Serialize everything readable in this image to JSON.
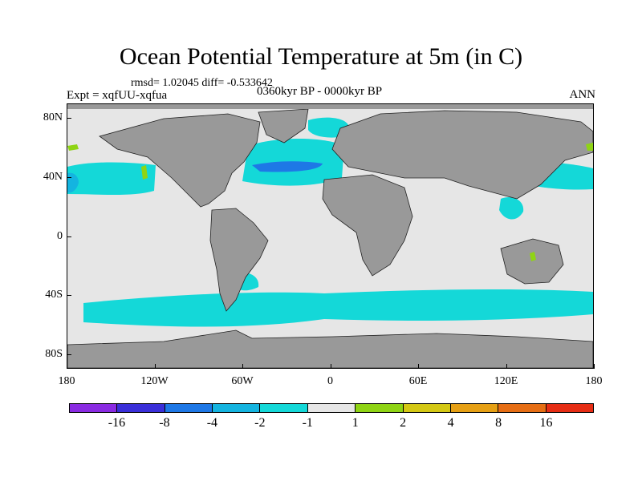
{
  "figure": {
    "title": "Ocean Potential Temperature at 5m (in C)",
    "stats_line": "rmsd= 1.02045 diff= -0.533642",
    "experiment": "Expt = xqfUU-xqfua",
    "period": "0360kyr BP - 0000kyr BP",
    "season": "ANN"
  },
  "map": {
    "projection": "cylindrical equidistant",
    "lon_range": [
      -180,
      180
    ],
    "lat_range": [
      -90,
      90
    ],
    "land_color": "#999999",
    "no_change_color": "#e6e6e6",
    "lat_ticks": [
      {
        "label": "80N",
        "lat": 80
      },
      {
        "label": "40N",
        "lat": 40
      },
      {
        "label": "0",
        "lat": 0
      },
      {
        "label": "40S",
        "lat": -40
      },
      {
        "label": "80S",
        "lat": -80
      }
    ],
    "lon_ticks": [
      {
        "label": "180",
        "lon": -180
      },
      {
        "label": "120W",
        "lon": -120
      },
      {
        "label": "60W",
        "lon": -60
      },
      {
        "label": "0",
        "lon": 0
      },
      {
        "label": "60E",
        "lon": 60
      },
      {
        "label": "120E",
        "lon": 120
      },
      {
        "label": "180",
        "lon": 180
      }
    ]
  },
  "colorbar": {
    "colors": [
      "#8a2be2",
      "#3a2fd9",
      "#1e78e6",
      "#14b4e0",
      "#14d8d8",
      "#e6e6e6",
      "#8fd414",
      "#d4c814",
      "#e6a014",
      "#e66e14",
      "#e62d14"
    ],
    "labels": [
      {
        "text": "-16",
        "boundary": 1
      },
      {
        "text": "-8",
        "boundary": 2
      },
      {
        "text": "-4",
        "boundary": 3
      },
      {
        "text": "-2",
        "boundary": 4
      },
      {
        "text": "-1",
        "boundary": 5
      },
      {
        "text": "1",
        "boundary": 6
      },
      {
        "text": "2",
        "boundary": 7
      },
      {
        "text": "4",
        "boundary": 8
      },
      {
        "text": "8",
        "boundary": 9
      },
      {
        "text": "16",
        "boundary": 10
      }
    ]
  }
}
